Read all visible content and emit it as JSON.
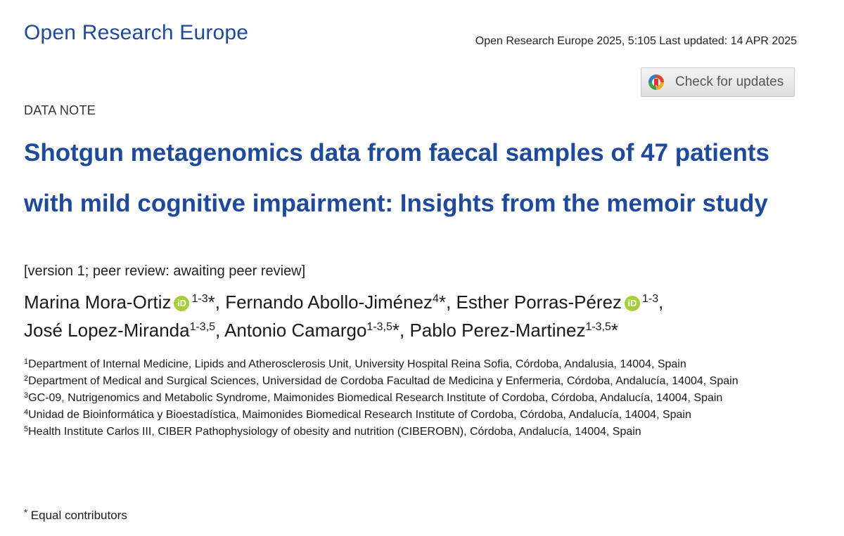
{
  "header": {
    "journal_name": "Open Research Europe",
    "citation": "Open Research Europe 2025, 5:105 Last updated: 14 APR 2025"
  },
  "check_updates": {
    "label": "Check for updates",
    "icon": "crossmark-icon"
  },
  "article": {
    "type": "DATA NOTE",
    "title": "Shotgun metagenomics data from faecal samples of 47 patients with mild cognitive impairment: Insights from the memoir study",
    "version": "[version 1; peer review: awaiting peer review]"
  },
  "authors": [
    {
      "name": "Marina Mora-Ortiz",
      "orcid": "iD",
      "sup": "1-3",
      "mark": "*",
      "sep": ", "
    },
    {
      "name": "Fernando Abollo-Jiménez",
      "sup": "4",
      "mark": "*",
      "sep": ", "
    },
    {
      "name": "Esther Porras-Pérez",
      "orcid": "iD",
      "sup": "1-3",
      "mark": "",
      "sep": ","
    },
    {
      "name": "José Lopez-Miranda",
      "sup": "1-3,5",
      "mark": "",
      "sep": ", "
    },
    {
      "name": "Antonio Camargo",
      "sup": "1-3,5",
      "mark": "*",
      "sep": ", "
    },
    {
      "name": "Pablo Perez-Martinez",
      "sup": "1-3,5",
      "mark": "*",
      "sep": ""
    }
  ],
  "affiliations": [
    {
      "num": "1",
      "text": "Department of Internal Medicine, Lipids and Atherosclerosis Unit, University Hospital Reina Sofia, Córdoba, Andalusia, 14004, Spain"
    },
    {
      "num": "2",
      "text": "Department of Medical and Surgical Sciences, Universidad de Cordoba Facultad de Medicina y Enfermeria, Córdoba, Andalucía, 14004, Spain"
    },
    {
      "num": "3",
      "text": "GC-09, Nutrigenomics and Metabolic Syndrome, Maimonides Biomedical Research Institute of Cordoba, Córdoba, Andalucía, 14004, Spain"
    },
    {
      "num": "4",
      "text": "Unidad de Bioinformática y Bioestadística, Maimonides Biomedical Research Institute of Cordoba, Córdoba, Andalucía, 14004, Spain"
    },
    {
      "num": "5",
      "text": "Health Institute Carlos III, CIBER Pathophysiology of obesity and nutrition (CIBEROBN), Córdoba, Andalucía, 14004, Spain"
    }
  ],
  "footnote": {
    "mark": "*",
    "text": "Equal contributors"
  }
}
